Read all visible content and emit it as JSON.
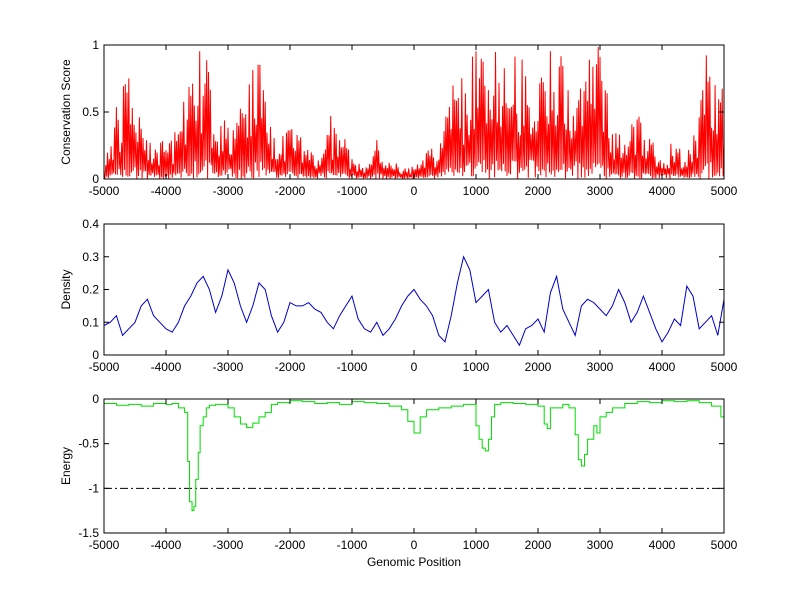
{
  "chart_data": [
    {
      "type": "line",
      "ylabel": "Conservation Score",
      "xlabel": "",
      "xlim": [
        -5000,
        5000
      ],
      "ylim": [
        0,
        1
      ],
      "xticks": [
        -5000,
        -4000,
        -3000,
        -2000,
        -1000,
        0,
        1000,
        2000,
        3000,
        4000,
        5000
      ],
      "yticks": [
        0,
        0.5,
        1
      ],
      "ytick_labels": [
        "0",
        "0.5",
        "1"
      ],
      "grid": false,
      "series": [
        {
          "color": "#ff0000",
          "style": "dense vertical spikes",
          "x": [
            -5000,
            -4800,
            -4600,
            -4400,
            -4200,
            -4000,
            -3800,
            -3700,
            -3600,
            -3500,
            -3400,
            -3300,
            -3200,
            -3100,
            -3000,
            -2800,
            -2600,
            -2500,
            -2400,
            -2200,
            -2000,
            -1800,
            -1600,
            -1400,
            -1200,
            -1000,
            -800,
            -600,
            -400,
            -200,
            0,
            200,
            400,
            600,
            800,
            1000,
            1100,
            1200,
            1300,
            1400,
            1500,
            1600,
            1700,
            1800,
            1900,
            2000,
            2100,
            2200,
            2300,
            2400,
            2500,
            2600,
            2700,
            2800,
            2900,
            3000,
            3200,
            3400,
            3600,
            3800,
            4000,
            4200,
            4400,
            4600,
            4700,
            4800,
            4900,
            5000
          ],
          "y": [
            0.1,
            0.6,
            0.8,
            0.5,
            0.3,
            0.3,
            0.4,
            0.7,
            1.0,
            1.0,
            1.0,
            0.9,
            0.6,
            0.4,
            0.5,
            0.6,
            0.9,
            1.0,
            0.7,
            0.3,
            0.4,
            0.3,
            0.2,
            0.5,
            0.4,
            0.2,
            0.1,
            0.3,
            0.2,
            0.1,
            0.1,
            0.2,
            0.3,
            0.7,
            0.8,
            1.0,
            1.0,
            0.9,
            1.0,
            1.0,
            0.9,
            1.0,
            1.0,
            0.9,
            1.0,
            0.9,
            0.8,
            1.0,
            1.0,
            1.0,
            0.9,
            1.0,
            0.7,
            0.9,
            1.0,
            1.0,
            0.4,
            0.3,
            0.5,
            0.3,
            0.2,
            0.3,
            0.2,
            0.5,
            1.0,
            0.9,
            0.6,
            0.8
          ]
        }
      ]
    },
    {
      "type": "line",
      "ylabel": "Density",
      "xlabel": "",
      "xlim": [
        -5000,
        5000
      ],
      "ylim": [
        0,
        0.4
      ],
      "xticks": [
        -5000,
        -4000,
        -3000,
        -2000,
        -1000,
        0,
        1000,
        2000,
        3000,
        4000,
        5000
      ],
      "yticks": [
        0,
        0.1,
        0.2,
        0.3,
        0.4
      ],
      "ytick_labels": [
        "0",
        "0.1",
        "0.2",
        "0.3",
        "0.4"
      ],
      "grid": false,
      "series": [
        {
          "color": "#0000cc",
          "x": [
            -5000,
            -4900,
            -4800,
            -4700,
            -4600,
            -4500,
            -4400,
            -4300,
            -4200,
            -4100,
            -4000,
            -3900,
            -3800,
            -3700,
            -3600,
            -3500,
            -3400,
            -3300,
            -3200,
            -3100,
            -3000,
            -2900,
            -2800,
            -2700,
            -2600,
            -2500,
            -2400,
            -2300,
            -2200,
            -2100,
            -2000,
            -1900,
            -1800,
            -1700,
            -1600,
            -1500,
            -1400,
            -1300,
            -1200,
            -1100,
            -1000,
            -900,
            -800,
            -700,
            -600,
            -500,
            -400,
            -300,
            -200,
            -100,
            0,
            100,
            200,
            300,
            400,
            500,
            600,
            700,
            800,
            900,
            1000,
            1100,
            1200,
            1300,
            1400,
            1500,
            1600,
            1700,
            1800,
            1900,
            2000,
            2100,
            2200,
            2300,
            2400,
            2500,
            2600,
            2700,
            2800,
            2900,
            3000,
            3100,
            3200,
            3300,
            3400,
            3500,
            3600,
            3700,
            3800,
            3900,
            4000,
            4100,
            4200,
            4300,
            4400,
            4500,
            4600,
            4700,
            4800,
            4900,
            5000
          ],
          "y": [
            0.09,
            0.1,
            0.12,
            0.06,
            0.08,
            0.1,
            0.15,
            0.17,
            0.12,
            0.1,
            0.08,
            0.07,
            0.1,
            0.15,
            0.18,
            0.22,
            0.24,
            0.2,
            0.13,
            0.18,
            0.26,
            0.22,
            0.15,
            0.1,
            0.15,
            0.22,
            0.2,
            0.12,
            0.07,
            0.1,
            0.16,
            0.15,
            0.15,
            0.16,
            0.14,
            0.13,
            0.1,
            0.08,
            0.12,
            0.15,
            0.18,
            0.11,
            0.08,
            0.07,
            0.1,
            0.06,
            0.08,
            0.11,
            0.15,
            0.18,
            0.2,
            0.17,
            0.15,
            0.12,
            0.06,
            0.04,
            0.12,
            0.22,
            0.3,
            0.26,
            0.16,
            0.18,
            0.2,
            0.1,
            0.07,
            0.09,
            0.06,
            0.03,
            0.08,
            0.09,
            0.11,
            0.07,
            0.19,
            0.24,
            0.14,
            0.1,
            0.06,
            0.15,
            0.17,
            0.16,
            0.14,
            0.12,
            0.15,
            0.2,
            0.16,
            0.1,
            0.13,
            0.18,
            0.13,
            0.08,
            0.04,
            0.07,
            0.11,
            0.09,
            0.21,
            0.18,
            0.08,
            0.1,
            0.12,
            0.06,
            0.17
          ]
        }
      ]
    },
    {
      "type": "line",
      "ylabel": "Energy",
      "xlabel": "Genomic Position",
      "xlim": [
        -5000,
        5000
      ],
      "ylim": [
        -1.5,
        0
      ],
      "xticks": [
        -5000,
        -4000,
        -3000,
        -2000,
        -1000,
        0,
        1000,
        2000,
        3000,
        4000,
        5000
      ],
      "yticks": [
        -1.5,
        -1,
        -0.5,
        0
      ],
      "ytick_labels": [
        "-1.5",
        "-1",
        "-0.5",
        "0"
      ],
      "grid": false,
      "reference_line": {
        "y": -1,
        "style": "dash-dot",
        "color": "#000000"
      },
      "series": [
        {
          "color": "#00dd00",
          "style": "step",
          "x": [
            -5000,
            -4800,
            -4600,
            -4400,
            -4200,
            -4000,
            -3900,
            -3800,
            -3700,
            -3650,
            -3620,
            -3580,
            -3550,
            -3520,
            -3480,
            -3450,
            -3400,
            -3350,
            -3300,
            -3200,
            -3000,
            -2900,
            -2800,
            -2700,
            -2600,
            -2500,
            -2400,
            -2300,
            -2200,
            -2000,
            -1800,
            -1600,
            -1400,
            -1200,
            -1000,
            -800,
            -600,
            -400,
            -200,
            -100,
            0,
            100,
            200,
            400,
            600,
            800,
            1000,
            1050,
            1100,
            1150,
            1200,
            1250,
            1300,
            1400,
            1600,
            1800,
            2000,
            2100,
            2150,
            2200,
            2400,
            2500,
            2600,
            2650,
            2700,
            2750,
            2800,
            2900,
            2950,
            3000,
            3100,
            3200,
            3400,
            3600,
            3800,
            4000,
            4200,
            4400,
            4600,
            4800,
            4950,
            5000
          ],
          "y": [
            -0.05,
            -0.07,
            -0.06,
            -0.08,
            -0.05,
            -0.06,
            -0.05,
            -0.1,
            -0.15,
            -0.7,
            -1.15,
            -1.25,
            -1.2,
            -0.9,
            -0.6,
            -0.3,
            -0.2,
            -0.1,
            -0.07,
            -0.06,
            -0.1,
            -0.2,
            -0.28,
            -0.32,
            -0.27,
            -0.2,
            -0.15,
            -0.06,
            -0.04,
            -0.02,
            -0.03,
            -0.05,
            -0.04,
            -0.06,
            -0.03,
            -0.04,
            -0.05,
            -0.08,
            -0.12,
            -0.25,
            -0.38,
            -0.2,
            -0.12,
            -0.1,
            -0.08,
            -0.06,
            -0.3,
            -0.45,
            -0.55,
            -0.58,
            -0.45,
            -0.2,
            -0.06,
            -0.04,
            -0.05,
            -0.06,
            -0.08,
            -0.28,
            -0.33,
            -0.1,
            -0.06,
            -0.1,
            -0.4,
            -0.68,
            -0.75,
            -0.62,
            -0.45,
            -0.3,
            -0.38,
            -0.2,
            -0.15,
            -0.1,
            -0.05,
            -0.03,
            -0.04,
            -0.02,
            -0.03,
            -0.02,
            -0.04,
            -0.08,
            -0.2,
            -0.36
          ]
        }
      ]
    }
  ]
}
